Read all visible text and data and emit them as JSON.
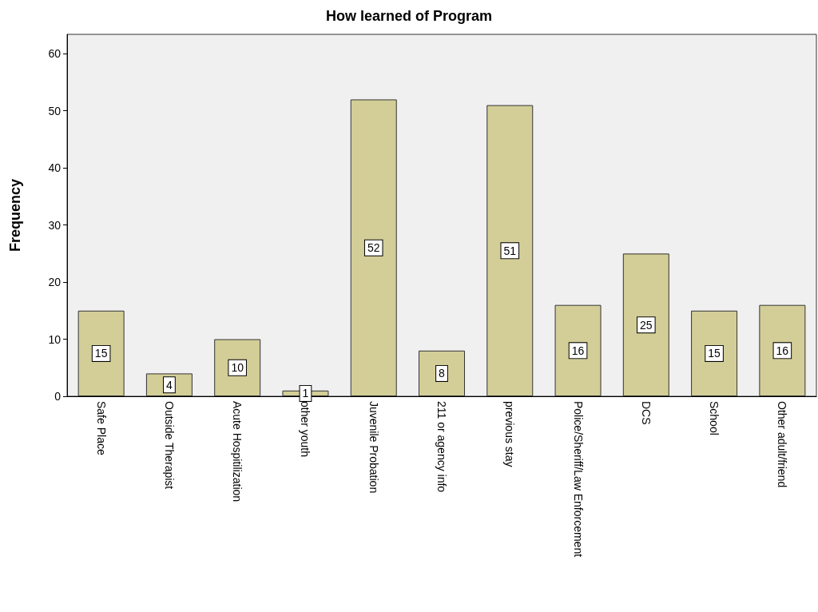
{
  "chart_data": {
    "type": "bar",
    "title": "How learned of Program",
    "ylabel": "Frequency",
    "categories": [
      "Safe Place",
      "Outside Therapist",
      "Acute Hospitilization",
      "other youth",
      "Juvenile Probation",
      "211 or agency info",
      "previous stay",
      "Police/Sheriff/Law Enforcement",
      "DCS",
      "School",
      "Other adult/friend"
    ],
    "values": [
      15,
      4,
      10,
      1,
      52,
      8,
      51,
      16,
      25,
      15,
      16
    ],
    "color": "#d3ce97",
    "ylim": [
      0,
      63.4
    ],
    "yticks": [
      0,
      10,
      20,
      30,
      40,
      50,
      60
    ],
    "grid": false,
    "data_labels": true
  }
}
